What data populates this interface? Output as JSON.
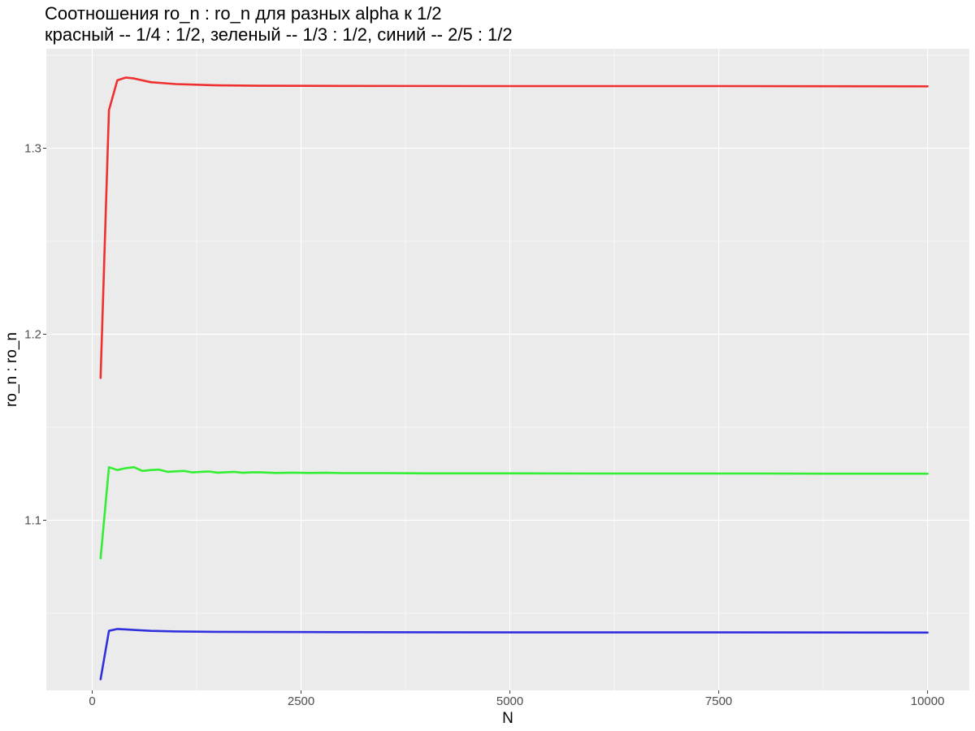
{
  "chart_data": {
    "type": "line",
    "title": "Соотношения ro_n : ro_n для разных alpha к 1/2",
    "subtitle": "красный -- 1/4 : 1/2, зеленый -- 1/3 : 1/2, синий -- 2/5 : 1/2",
    "xlabel": "N",
    "ylabel": "ro_n : ro_n",
    "xlim": [
      -550,
      10500
    ],
    "ylim": [
      1.0085,
      1.3535
    ],
    "x_ticks": [
      0,
      2500,
      5000,
      7500,
      10000
    ],
    "x_tick_labels": [
      "0",
      "2500",
      "5000",
      "7500",
      "10000"
    ],
    "y_ticks": [
      1.1,
      1.2,
      1.3
    ],
    "y_tick_labels": [
      "1.1",
      "1.2",
      "1.3"
    ],
    "grid": true,
    "background": "#ebebeb",
    "series": [
      {
        "color": "#ee3030",
        "x": [
          100,
          200,
          300,
          400,
          500,
          700,
          1000,
          1500,
          2000,
          3000,
          5000,
          7500,
          10000
        ],
        "y": [
          1.1765,
          1.3205,
          1.3365,
          1.338,
          1.3375,
          1.3355,
          1.3345,
          1.3338,
          1.3336,
          1.3335,
          1.3334,
          1.3334,
          1.3333
        ]
      },
      {
        "color": "#33ee33",
        "x": [
          100,
          200,
          300,
          400,
          500,
          600,
          700,
          800,
          900,
          1000,
          1100,
          1200,
          1300,
          1400,
          1500,
          1600,
          1700,
          1800,
          1900,
          2000,
          2200,
          2400,
          2600,
          2800,
          3000,
          3500,
          4000,
          5000,
          6000,
          7000,
          8000,
          9000,
          10000
        ],
        "y": [
          1.0795,
          1.1285,
          1.127,
          1.128,
          1.1285,
          1.1265,
          1.127,
          1.1272,
          1.126,
          1.1263,
          1.1265,
          1.1257,
          1.126,
          1.1262,
          1.1256,
          1.1258,
          1.126,
          1.1255,
          1.1257,
          1.1258,
          1.1254,
          1.1256,
          1.1254,
          1.1255,
          1.1253,
          1.1253,
          1.1252,
          1.1252,
          1.1251,
          1.1251,
          1.1251,
          1.125,
          1.125
        ]
      },
      {
        "color": "#3030dd",
        "x": [
          100,
          200,
          300,
          400,
          500,
          700,
          1000,
          1500,
          2000,
          3000,
          5000,
          7500,
          10000
        ],
        "y": [
          1.0145,
          1.0405,
          1.0415,
          1.0413,
          1.041,
          1.0405,
          1.0402,
          1.04,
          1.0399,
          1.0398,
          1.0397,
          1.0397,
          1.0396
        ]
      }
    ]
  }
}
